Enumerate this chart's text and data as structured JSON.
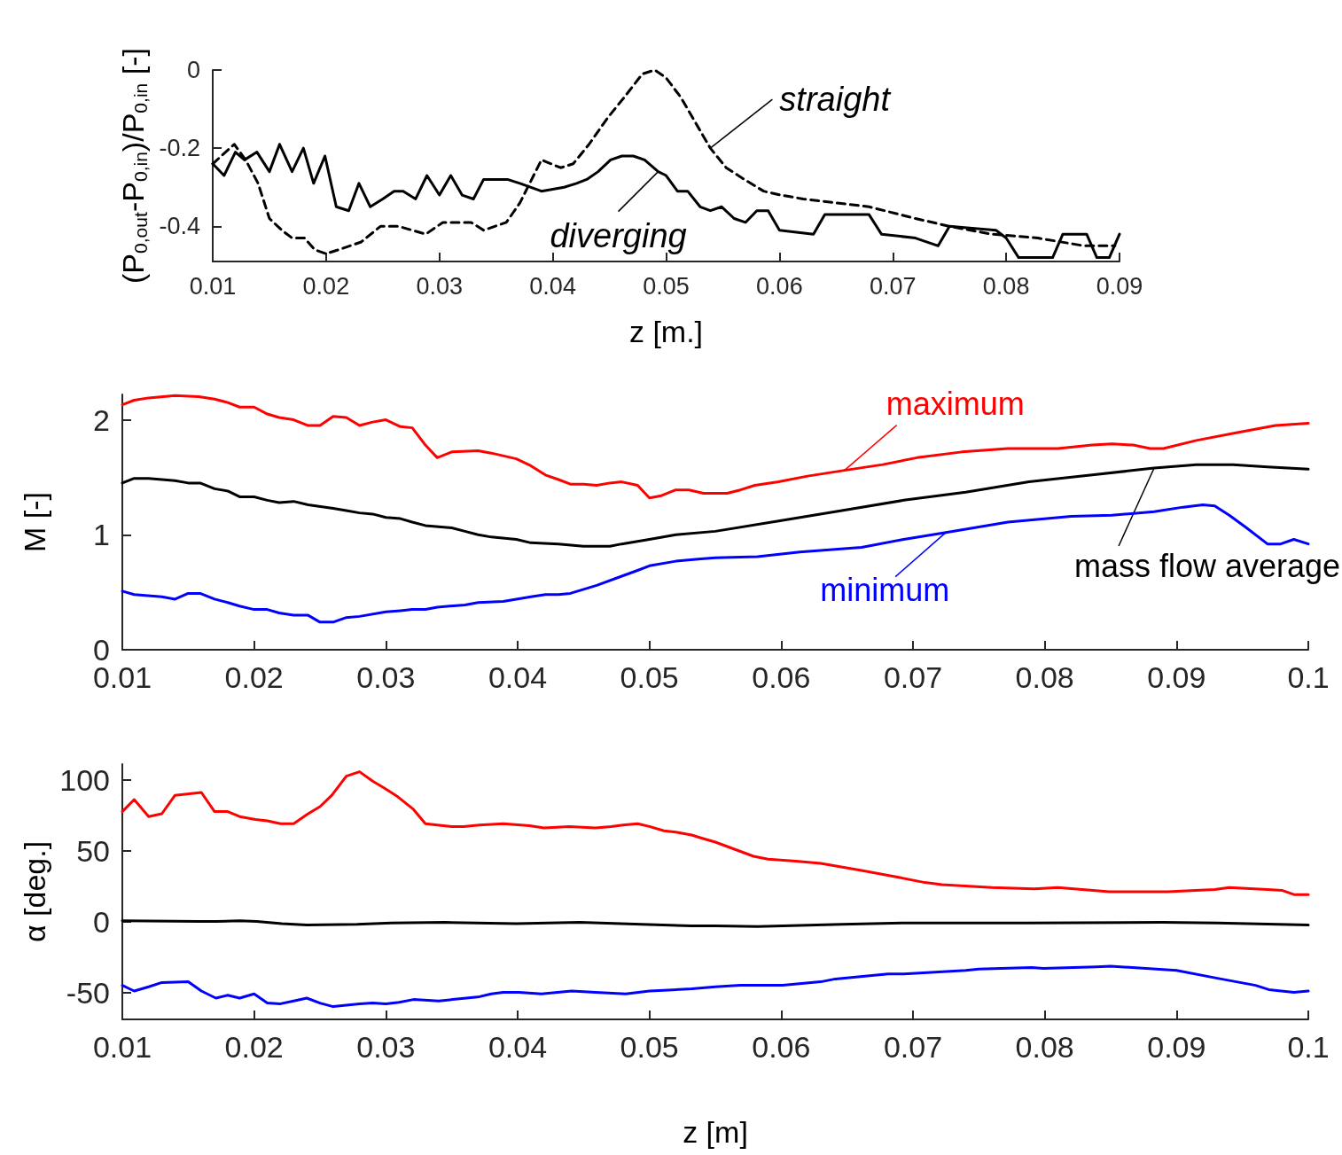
{
  "chart_data": [
    {
      "type": "line",
      "xlabel": "z [m.]",
      "ylabel": "(P$_{0,out}$-P$_{0,in}$)/P$_{0,in}$ [-]",
      "xlim": [
        0.01,
        0.09
      ],
      "xticks": [
        0.01,
        0.02,
        0.03,
        0.04,
        0.05,
        0.06,
        0.07,
        0.08,
        0.09
      ],
      "ylim": [
        -0.49,
        0
      ],
      "yticks": [
        -0.4,
        -0.2,
        0
      ],
      "grid": false,
      "marker": "none",
      "series": [
        {
          "name": "straight",
          "color": "#000000",
          "line_style": "dashed",
          "x": [
            0.01,
            0.0119,
            0.0129,
            0.014,
            0.015,
            0.0161,
            0.017,
            0.0181,
            0.019,
            0.02,
            0.0211,
            0.0221,
            0.0231,
            0.0248,
            0.0264,
            0.0288,
            0.0303,
            0.0328,
            0.0339,
            0.0359,
            0.0371,
            0.039,
            0.0407,
            0.0418,
            0.0432,
            0.0449,
            0.0463,
            0.0479,
            0.049,
            0.05,
            0.0513,
            0.0529,
            0.0539,
            0.0553,
            0.0569,
            0.0586,
            0.0601,
            0.0621,
            0.065,
            0.0679,
            0.072,
            0.075,
            0.0787,
            0.0828,
            0.0869,
            0.0896
          ],
          "values": [
            -0.24,
            -0.19,
            -0.23,
            -0.29,
            -0.38,
            -0.41,
            -0.43,
            -0.43,
            -0.46,
            -0.47,
            -0.46,
            -0.45,
            -0.44,
            -0.4,
            -0.4,
            -0.42,
            -0.39,
            -0.39,
            -0.41,
            -0.39,
            -0.34,
            -0.23,
            -0.25,
            -0.24,
            -0.19,
            -0.12,
            -0.07,
            -0.01,
            0,
            -0.02,
            -0.07,
            -0.15,
            -0.2,
            -0.25,
            -0.28,
            -0.31,
            -0.32,
            -0.33,
            -0.34,
            -0.35,
            -0.38,
            -0.4,
            -0.42,
            -0.43,
            -0.45,
            -0.45
          ]
        },
        {
          "name": "diverging",
          "color": "#000000",
          "line_style": "solid",
          "x": [
            0.01,
            0.011,
            0.012,
            0.0128,
            0.0139,
            0.015,
            0.0159,
            0.017,
            0.018,
            0.0189,
            0.0199,
            0.0209,
            0.022,
            0.0229,
            0.0239,
            0.025,
            0.026,
            0.0268,
            0.0279,
            0.0289,
            0.03,
            0.031,
            0.032,
            0.033,
            0.0339,
            0.0349,
            0.036,
            0.0371,
            0.039,
            0.041,
            0.0421,
            0.043,
            0.044,
            0.0451,
            0.0461,
            0.0471,
            0.0481,
            0.0493,
            0.05,
            0.051,
            0.0519,
            0.053,
            0.0539,
            0.0549,
            0.056,
            0.057,
            0.058,
            0.059,
            0.06,
            0.063,
            0.064,
            0.0679,
            0.069,
            0.072,
            0.074,
            0.075,
            0.0791,
            0.08,
            0.0811,
            0.0841,
            0.085,
            0.0871,
            0.088,
            0.0891,
            0.09
          ],
          "values": [
            -0.24,
            -0.27,
            -0.21,
            -0.23,
            -0.21,
            -0.26,
            -0.19,
            -0.26,
            -0.2,
            -0.29,
            -0.22,
            -0.35,
            -0.36,
            -0.29,
            -0.35,
            -0.33,
            -0.31,
            -0.31,
            -0.33,
            -0.27,
            -0.32,
            -0.27,
            -0.32,
            -0.33,
            -0.28,
            -0.28,
            -0.28,
            -0.29,
            -0.31,
            -0.3,
            -0.29,
            -0.28,
            -0.26,
            -0.23,
            -0.22,
            -0.22,
            -0.23,
            -0.26,
            -0.27,
            -0.31,
            -0.31,
            -0.35,
            -0.36,
            -0.35,
            -0.38,
            -0.39,
            -0.36,
            -0.36,
            -0.41,
            -0.42,
            -0.37,
            -0.37,
            -0.42,
            -0.43,
            -0.45,
            -0.4,
            -0.41,
            -0.43,
            -0.48,
            -0.48,
            -0.42,
            -0.42,
            -0.48,
            -0.48,
            -0.42
          ]
        }
      ]
    },
    {
      "type": "line",
      "ylabel": "M [-]",
      "xlim": [
        0.01,
        0.1
      ],
      "xticks": [
        0.01,
        0.02,
        0.03,
        0.04,
        0.05,
        0.06,
        0.07,
        0.08,
        0.09,
        0.1
      ],
      "ylim": [
        0,
        2.22
      ],
      "yticks": [
        0,
        1,
        2
      ],
      "grid": false,
      "marker": "none",
      "series": [
        {
          "name": "maximum",
          "color": "#ff0000",
          "x": [
            0.01,
            0.0109,
            0.012,
            0.014,
            0.0158,
            0.017,
            0.018,
            0.0189,
            0.02,
            0.021,
            0.0219,
            0.023,
            0.0241,
            0.025,
            0.026,
            0.027,
            0.028,
            0.029,
            0.03,
            0.0311,
            0.032,
            0.033,
            0.0339,
            0.035,
            0.037,
            0.038,
            0.0399,
            0.041,
            0.0421,
            0.0431,
            0.044,
            0.045,
            0.046,
            0.047,
            0.0479,
            0.0491,
            0.05,
            0.0509,
            0.052,
            0.053,
            0.0541,
            0.055,
            0.0559,
            0.0569,
            0.058,
            0.0598,
            0.062,
            0.0648,
            0.0677,
            0.0703,
            0.0737,
            0.0772,
            0.081,
            0.0836,
            0.0851,
            0.0867,
            0.088,
            0.089,
            0.0915,
            0.0947,
            0.0975,
            0.1
          ],
          "values": [
            2.13,
            2.17,
            2.19,
            2.21,
            2.2,
            2.18,
            2.15,
            2.11,
            2.11,
            2.05,
            2.02,
            2.0,
            1.95,
            1.95,
            2.03,
            2.02,
            1.95,
            1.98,
            2.0,
            1.94,
            1.93,
            1.78,
            1.67,
            1.72,
            1.73,
            1.71,
            1.66,
            1.6,
            1.52,
            1.48,
            1.44,
            1.44,
            1.43,
            1.45,
            1.46,
            1.43,
            1.32,
            1.34,
            1.39,
            1.39,
            1.36,
            1.36,
            1.36,
            1.39,
            1.43,
            1.46,
            1.51,
            1.56,
            1.61,
            1.67,
            1.72,
            1.75,
            1.75,
            1.78,
            1.79,
            1.78,
            1.75,
            1.75,
            1.82,
            1.89,
            1.95,
            1.97
          ]
        },
        {
          "name": "mass flow average",
          "color": "#000000",
          "x": [
            0.01,
            0.0109,
            0.012,
            0.014,
            0.015,
            0.0159,
            0.017,
            0.018,
            0.0189,
            0.02,
            0.021,
            0.0219,
            0.023,
            0.0241,
            0.026,
            0.027,
            0.028,
            0.029,
            0.03,
            0.0311,
            0.032,
            0.033,
            0.035,
            0.036,
            0.037,
            0.038,
            0.0399,
            0.041,
            0.0431,
            0.045,
            0.047,
            0.0479,
            0.05,
            0.052,
            0.055,
            0.0598,
            0.0646,
            0.0693,
            0.074,
            0.0788,
            0.0836,
            0.0883,
            0.0915,
            0.0943,
            0.0969,
            0.1
          ],
          "values": [
            1.45,
            1.49,
            1.49,
            1.47,
            1.45,
            1.45,
            1.4,
            1.38,
            1.33,
            1.33,
            1.3,
            1.28,
            1.29,
            1.26,
            1.23,
            1.21,
            1.19,
            1.18,
            1.15,
            1.14,
            1.11,
            1.08,
            1.06,
            1.03,
            1.0,
            0.98,
            0.96,
            0.93,
            0.92,
            0.9,
            0.9,
            0.92,
            0.96,
            1.0,
            1.03,
            1.12,
            1.21,
            1.3,
            1.37,
            1.46,
            1.52,
            1.58,
            1.61,
            1.61,
            1.59,
            1.57
          ]
        },
        {
          "name": "minimum",
          "color": "#0000ff",
          "x": [
            0.01,
            0.0109,
            0.013,
            0.014,
            0.015,
            0.0159,
            0.017,
            0.018,
            0.0189,
            0.02,
            0.021,
            0.0219,
            0.023,
            0.0241,
            0.025,
            0.026,
            0.027,
            0.028,
            0.03,
            0.0311,
            0.032,
            0.033,
            0.0339,
            0.036,
            0.037,
            0.0389,
            0.041,
            0.0421,
            0.0431,
            0.044,
            0.046,
            0.0479,
            0.0491,
            0.05,
            0.052,
            0.0539,
            0.055,
            0.0582,
            0.0614,
            0.0661,
            0.0693,
            0.0725,
            0.0772,
            0.082,
            0.0851,
            0.0883,
            0.0905,
            0.092,
            0.0929,
            0.094,
            0.0952,
            0.0969,
            0.0979,
            0.0989,
            0.1
          ],
          "values": [
            0.51,
            0.48,
            0.46,
            0.44,
            0.49,
            0.49,
            0.44,
            0.41,
            0.38,
            0.35,
            0.35,
            0.32,
            0.3,
            0.3,
            0.24,
            0.24,
            0.28,
            0.29,
            0.33,
            0.34,
            0.35,
            0.35,
            0.37,
            0.39,
            0.41,
            0.42,
            0.46,
            0.48,
            0.48,
            0.49,
            0.56,
            0.64,
            0.69,
            0.73,
            0.77,
            0.79,
            0.8,
            0.81,
            0.85,
            0.89,
            0.96,
            1.02,
            1.11,
            1.16,
            1.17,
            1.2,
            1.24,
            1.26,
            1.25,
            1.17,
            1.07,
            0.92,
            0.92,
            0.96,
            0.92
          ]
        }
      ]
    },
    {
      "type": "line",
      "xlabel": "z [m]",
      "ylabel": "α [deg.]",
      "xlim": [
        0.01,
        0.1
      ],
      "xticks": [
        0.01,
        0.02,
        0.03,
        0.04,
        0.05,
        0.06,
        0.07,
        0.08,
        0.09,
        0.1
      ],
      "ylim": [
        -69,
        111
      ],
      "yticks": [
        -50,
        0,
        50,
        100
      ],
      "grid": false,
      "marker": "none",
      "series": [
        {
          "color": "#ff0000",
          "x": [
            0.01,
            0.0109,
            0.012,
            0.013,
            0.014,
            0.016,
            0.017,
            0.018,
            0.0189,
            0.0201,
            0.021,
            0.022,
            0.023,
            0.0241,
            0.025,
            0.0259,
            0.027,
            0.028,
            0.029,
            0.0299,
            0.0309,
            0.0321,
            0.033,
            0.0339,
            0.035,
            0.0359,
            0.0371,
            0.0389,
            0.0409,
            0.042,
            0.0439,
            0.0459,
            0.0471,
            0.048,
            0.0491,
            0.05,
            0.0511,
            0.052,
            0.0532,
            0.0539,
            0.055,
            0.0579,
            0.059,
            0.0611,
            0.063,
            0.0661,
            0.069,
            0.0709,
            0.0722,
            0.076,
            0.0792,
            0.081,
            0.0849,
            0.0893,
            0.0929,
            0.094,
            0.0969,
            0.098,
            0.0989,
            0.1
          ],
          "values": [
            77.5,
            86,
            74,
            76,
            89,
            91,
            77.5,
            77.5,
            74,
            72,
            71,
            69,
            69,
            76,
            81,
            89,
            102.5,
            105.6,
            99,
            94,
            88,
            79,
            69,
            68,
            67,
            67,
            68,
            69,
            67.5,
            66,
            67,
            66,
            67,
            68,
            69,
            67,
            64,
            63,
            61,
            59,
            56,
            46,
            44,
            42.5,
            41,
            36,
            31,
            27.5,
            26,
            24,
            23,
            24,
            21,
            21,
            22.5,
            24,
            22.5,
            22,
            19,
            19
          ]
        },
        {
          "color": "#000000",
          "x": [
            0.01,
            0.0159,
            0.0171,
            0.0189,
            0.0202,
            0.0221,
            0.024,
            0.0278,
            0.0304,
            0.0345,
            0.0399,
            0.0447,
            0.0494,
            0.0532,
            0.055,
            0.0582,
            0.0646,
            0.0693,
            0.0788,
            0.0889,
            0.0931,
            0.1
          ],
          "values": [
            0.6,
            0,
            0,
            0.6,
            0,
            -1.5,
            -2.5,
            -2,
            -1,
            -0.6,
            -1.5,
            -0.6,
            -2,
            -3,
            -3,
            -3.5,
            -2,
            -1,
            -1,
            -0.6,
            -1,
            -2.5
          ]
        },
        {
          "color": "#0000ff",
          "x": [
            0.01,
            0.0109,
            0.012,
            0.013,
            0.015,
            0.016,
            0.0171,
            0.018,
            0.0189,
            0.02,
            0.021,
            0.022,
            0.023,
            0.024,
            0.025,
            0.026,
            0.027,
            0.028,
            0.029,
            0.03,
            0.031,
            0.0321,
            0.034,
            0.0361,
            0.0371,
            0.038,
            0.0389,
            0.0401,
            0.0418,
            0.0441,
            0.0459,
            0.0482,
            0.05,
            0.0532,
            0.055,
            0.0569,
            0.0601,
            0.063,
            0.0641,
            0.0681,
            0.0693,
            0.074,
            0.075,
            0.079,
            0.0799,
            0.0839,
            0.085,
            0.09,
            0.0931,
            0.096,
            0.097,
            0.0989,
            0.1
          ],
          "values": [
            -45,
            -49,
            -46,
            -43,
            -42.5,
            -49,
            -54,
            -52,
            -54,
            -51,
            -57.5,
            -58,
            -56,
            -54,
            -57.5,
            -60,
            -59,
            -58,
            -57.5,
            -58,
            -57,
            -55,
            -56,
            -54,
            -53,
            -51,
            -50,
            -50,
            -51,
            -49,
            -50,
            -51,
            -49,
            -47.5,
            -46,
            -45,
            -45,
            -42.5,
            -40.5,
            -37,
            -37,
            -34.5,
            -33.5,
            -32.5,
            -33,
            -32,
            -31.5,
            -34.5,
            -40,
            -45,
            -48,
            -50,
            -49
          ]
        }
      ]
    }
  ]
}
